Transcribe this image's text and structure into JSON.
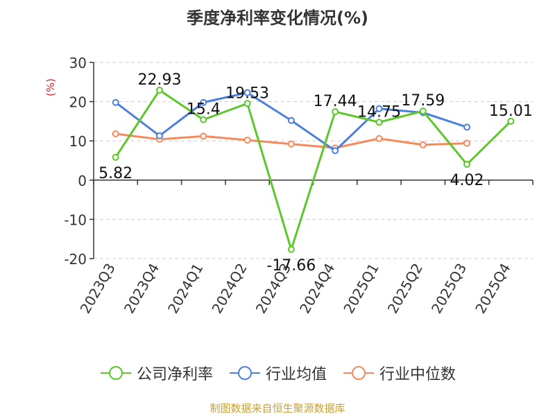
{
  "chart_data": {
    "type": "line",
    "title": "季度净利率变化情况(%)",
    "ylabel": "(%)",
    "xlabel": "",
    "categories": [
      "2023Q3",
      "2023Q4",
      "2024Q1",
      "2024Q2",
      "2024Q3",
      "2024Q4",
      "2025Q1",
      "2025Q2",
      "2025Q3",
      "2025Q4"
    ],
    "ylim": [
      -20,
      30
    ],
    "yticks": [
      30,
      20,
      10,
      0,
      -10,
      -20
    ],
    "grid": true,
    "legend_position": "bottom",
    "series": [
      {
        "name": "公司净利率",
        "color": "#5cc72a",
        "values": [
          5.82,
          22.93,
          15.4,
          19.53,
          -17.66,
          17.44,
          14.75,
          17.59,
          4.02,
          15.01
        ],
        "labels": [
          "5.82",
          "22.93",
          "15.4",
          "19.53",
          "-17.66",
          "17.44",
          "14.75",
          "17.59",
          "4.02",
          "15.01"
        ]
      },
      {
        "name": "行业均值",
        "color": "#4a7fe0",
        "values": [
          19.8,
          11.3,
          19.8,
          22.3,
          15.2,
          7.5,
          18.2,
          17.2,
          13.5,
          null
        ]
      },
      {
        "name": "行业中位数",
        "color": "#f5895a",
        "values": [
          11.8,
          10.4,
          11.2,
          10.2,
          9.2,
          8.2,
          10.6,
          9.0,
          9.4,
          null
        ]
      }
    ]
  },
  "footer": {
    "source": "制图数据来自恒生聚源数据库"
  }
}
